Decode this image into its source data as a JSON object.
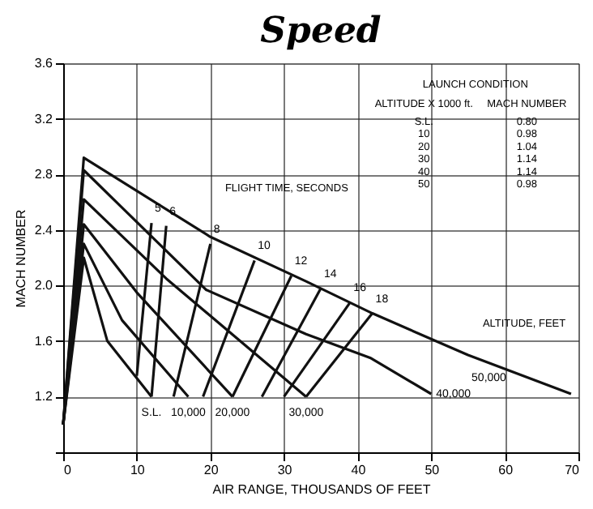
{
  "chart_data": {
    "type": "line",
    "title": "Speed",
    "xlabel": "AIR RANGE, THOUSANDS OF FEET",
    "ylabel": "MACH NUMBER",
    "xlim": [
      0,
      70
    ],
    "xticks": [
      0,
      10,
      20,
      30,
      40,
      50,
      60,
      70
    ],
    "ylim": [
      0.8,
      3.6
    ],
    "yticks": [
      {
        "value": 0.8,
        "label": null
      },
      1.2,
      1.6,
      {
        "value": 2.0,
        "label": "2.0"
      },
      2.4,
      2.8,
      3.2,
      3.6
    ],
    "grid": true,
    "line_style": "solid",
    "annotations": [
      "LAUNCH CONDITION",
      "ALTITUDE X 1000 ft.",
      "MACH NUMBER",
      "S.L.",
      "0.80",
      "10",
      "0.98",
      "20",
      "1.04",
      "30",
      "1.14",
      "40",
      "1.14",
      "50",
      "0.98",
      "FLIGHT TIME, SECONDS",
      "ALTITUDE, FEET"
    ],
    "series": [
      {
        "name": "50,000",
        "color": "#111111",
        "x": [
          0,
          2.8,
          20,
          33,
          42,
          55,
          69
        ],
        "values": [
          1.0,
          2.92,
          2.35,
          2.03,
          1.8,
          1.5,
          1.22
        ]
      },
      {
        "name": "40,000",
        "color": "#111111",
        "x": [
          0,
          2.8,
          19.4,
          33,
          41.7,
          50
        ],
        "values": [
          1.0,
          2.83,
          1.97,
          1.65,
          1.48,
          1.22
        ]
      },
      {
        "name": "30,000",
        "color": "#111111",
        "x": [
          0,
          2.8,
          14,
          33
        ],
        "values": [
          1.0,
          2.62,
          2.05,
          1.2
        ]
      },
      {
        "name": "20,000",
        "color": "#111111",
        "x": [
          0,
          2.8,
          10,
          23
        ],
        "values": [
          1.0,
          2.44,
          1.95,
          1.2
        ]
      },
      {
        "name": "10,000",
        "color": "#111111",
        "x": [
          0,
          2.8,
          8,
          17
        ],
        "values": [
          1.0,
          2.3,
          1.75,
          1.2
        ]
      },
      {
        "name": "S.L.",
        "color": "#111111",
        "x": [
          0,
          2.8,
          6,
          12
        ],
        "values": [
          1.0,
          2.2,
          1.6,
          1.2
        ]
      },
      {
        "name": "5",
        "color": "#111111",
        "x": [
          10,
          12
        ],
        "values": [
          1.35,
          2.45
        ]
      },
      {
        "name": "6",
        "color": "#111111",
        "x": [
          12,
          14
        ],
        "values": [
          1.2,
          2.43
        ]
      },
      {
        "name": "8",
        "color": "#111111",
        "x": [
          15,
          20
        ],
        "values": [
          1.2,
          2.3
        ]
      },
      {
        "name": "10",
        "color": "#111111",
        "x": [
          19,
          26
        ],
        "values": [
          1.2,
          2.18
        ]
      },
      {
        "name": "12",
        "color": "#111111",
        "x": [
          23,
          31
        ],
        "values": [
          1.2,
          2.07
        ]
      },
      {
        "name": "14",
        "color": "#111111",
        "x": [
          27,
          35
        ],
        "values": [
          1.2,
          1.98
        ]
      },
      {
        "name": "16",
        "color": "#111111",
        "x": [
          30,
          39
        ],
        "values": [
          1.2,
          1.88
        ]
      },
      {
        "name": "18",
        "color": "#111111",
        "x": [
          33,
          42
        ],
        "values": [
          1.2,
          1.8
        ]
      }
    ]
  }
}
